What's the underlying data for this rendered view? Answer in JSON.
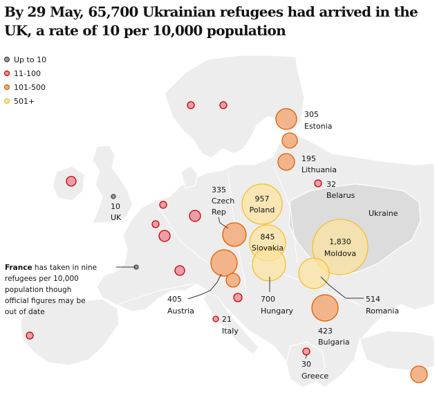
{
  "title": "By 29 May, 65,700 Ukrainian refugees had arrived in the UK, a rate of 10 per 10,000 population",
  "colors": {
    "land": "#ededed",
    "ukraine": "#dcdcdc",
    "border": "#ffffff",
    "up_to_10_fill": "#9a9a9a",
    "up_to_10_stroke": "#444444",
    "11_100_fill": "#ea8f98",
    "11_100_stroke": "#c70000",
    "101_500_fill": "#f2a978",
    "101_500_stroke": "#e05e00",
    "501_fill": "#fbe3a0",
    "501_stroke": "#f5be2c"
  },
  "legend": [
    {
      "label": "Up to 10",
      "category": "up_to_10"
    },
    {
      "label": "11-100",
      "category": "11_100"
    },
    {
      "label": "101-500",
      "category": "101_500"
    },
    {
      "label": "501+",
      "category": "501"
    }
  ],
  "annotation": "France has taken in nine refugees per 10,000 population though official figures may be out of date",
  "region_labels": {
    "ukraine": "Ukraine"
  },
  "countries": [
    {
      "name": "UK",
      "value": 10,
      "category": "up_to_10"
    },
    {
      "name": "France",
      "value": 9,
      "category": "up_to_10"
    },
    {
      "name": "Ireland",
      "category": "11_100"
    },
    {
      "name": "Norway",
      "category": "11_100"
    },
    {
      "name": "Sweden",
      "category": "11_100"
    },
    {
      "name": "Netherlands",
      "category": "11_100"
    },
    {
      "name": "Belgium",
      "category": "11_100"
    },
    {
      "name": "Luxembourg",
      "category": "11_100"
    },
    {
      "name": "Denmark",
      "category": "11_100"
    },
    {
      "name": "Portugal",
      "category": "11_100"
    },
    {
      "name": "Slovenia",
      "category": "11_100"
    },
    {
      "name": "Switzerland",
      "category": "11_100"
    },
    {
      "name": "Belarus",
      "value": 32,
      "category": "11_100"
    },
    {
      "name": "Italy",
      "value": 21,
      "category": "11_100"
    },
    {
      "name": "Greece",
      "value": 30,
      "category": "11_100"
    },
    {
      "name": "Estonia",
      "value": 305,
      "category": "101_500"
    },
    {
      "name": "Latvia",
      "category": "101_500"
    },
    {
      "name": "Lithuania",
      "value": 195,
      "category": "101_500"
    },
    {
      "name": "Czech Rep",
      "value": 335,
      "category": "101_500"
    },
    {
      "name": "Austria",
      "value": 405,
      "category": "101_500"
    },
    {
      "name": "Croatia",
      "category": "101_500"
    },
    {
      "name": "Romania",
      "value": 514,
      "category": "501"
    },
    {
      "name": "Bulgaria",
      "value": 423,
      "category": "101_500"
    },
    {
      "name": "Cyprus",
      "category": "101_500"
    },
    {
      "name": "Poland",
      "value": 957,
      "category": "501"
    },
    {
      "name": "Slovakia",
      "value": 845,
      "category": "501"
    },
    {
      "name": "Hungary",
      "value": 700,
      "category": "501"
    },
    {
      "name": "Moldova",
      "value": 1830,
      "category": "501"
    }
  ],
  "labels": {
    "estonia_value": "305",
    "estonia_name": "Estonia",
    "lithuania_value": "195",
    "lithuania_name": "Lithuania",
    "belarus_value": "32",
    "belarus_name": "Belarus",
    "czech_value": "335",
    "czech_name_1": "Czech",
    "czech_name_2": "Rep",
    "uk_value": "10",
    "uk_name": "UK",
    "poland_value": "957",
    "poland_name": "Poland",
    "slovakia_value": "845",
    "slovakia_name": "Slovakia",
    "moldova_value": "1,830",
    "moldova_name": "Moldova",
    "austria_value": "405",
    "austria_name": "Austria",
    "hungary_value": "700",
    "hungary_name": "Hungary",
    "romania_value": "514",
    "romania_name": "Romania",
    "italy_value": "21",
    "italy_name": "Italy",
    "bulgaria_value": "423",
    "bulgaria_name": "Bulgaria",
    "greece_value": "30",
    "greece_name": "Greece"
  }
}
